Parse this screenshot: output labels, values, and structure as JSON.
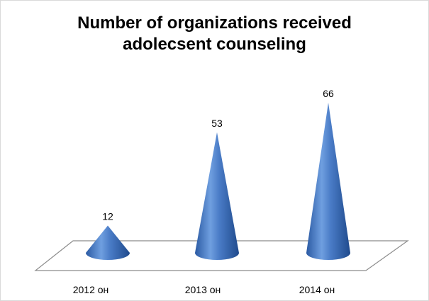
{
  "chart_data": {
    "type": "bar",
    "title_line1": "Number of organizations received",
    "title_line2": "adolecsent counseling",
    "categories": [
      "2012 он",
      "2013 он",
      "2014 он"
    ],
    "values": [
      12,
      53,
      66
    ],
    "xlabel": "",
    "ylabel": "",
    "ylim": [
      0,
      66
    ],
    "shape": "cone",
    "color": "#4a7cc7",
    "data_labels": true,
    "grid": false,
    "legend": false
  }
}
